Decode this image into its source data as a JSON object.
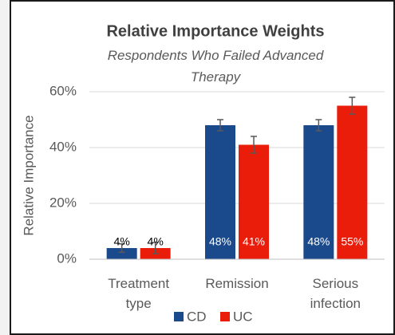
{
  "chart_data": {
    "type": "bar",
    "title": "Relative Importance Weights",
    "subtitle": "Respondents Who Failed Advanced Therapy",
    "y_label": "Relative Importance",
    "categories": [
      "Treatment type",
      "Remission",
      "Serious infection"
    ],
    "series": [
      {
        "name": "CD",
        "color": "#1b4a8c",
        "values": [
          4,
          48,
          48
        ],
        "errors": [
          1.5,
          2,
          2
        ],
        "value_labels": [
          "4%",
          "48%",
          "48%"
        ],
        "label_colors": [
          "#000000",
          "#ffffff",
          "#ffffff"
        ]
      },
      {
        "name": "UC",
        "color": "#ea1d0b",
        "values": [
          4,
          41,
          55
        ],
        "errors": [
          2,
          3,
          3
        ],
        "value_labels": [
          "4%",
          "41%",
          "55%"
        ],
        "label_colors": [
          "#000000",
          "#ffffff",
          "#ffffff"
        ]
      }
    ],
    "ylim": [
      0,
      60
    ],
    "yticks": [
      {
        "value": 0,
        "label": "0%"
      },
      {
        "value": 20,
        "label": "20%"
      },
      {
        "value": 40,
        "label": "40%"
      },
      {
        "value": 60,
        "label": "60%"
      }
    ],
    "grid": true,
    "legend": "bottom"
  }
}
